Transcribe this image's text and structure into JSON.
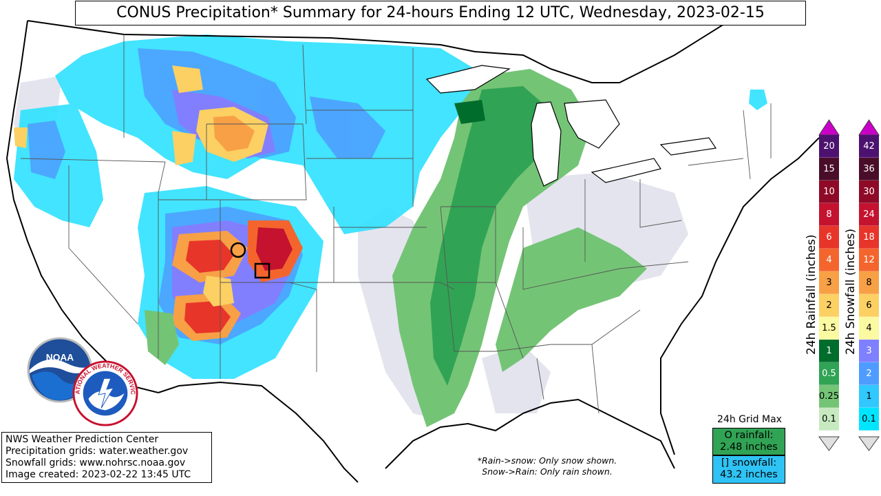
{
  "title": "CONUS Precipitation* Summary for 24-hours Ending 12 UTC, Wednesday, 2023-02-15",
  "info": [
    "NWS Weather Prediction Center",
    "Precipitation grids: water.weather.gov",
    "Snowfall grids: www.nohrsc.noaa.gov",
    "Image created: 2023-02-22 13:45 UTC"
  ],
  "note": [
    "*Rain->snow: Only snow shown.",
    "Snow->Rain: Only rain shown."
  ],
  "grid_max": {
    "label": "24h Grid Max",
    "rain_label": "O rainfall:",
    "rain_value": "2.48 inches",
    "snow_label": "[] snowfall:",
    "snow_value": "43.2 inches"
  },
  "rain_legend": {
    "title": "24h Rainfall (inches)",
    "levels": [
      "20",
      "15",
      "10",
      "8",
      "6",
      "4",
      "3",
      "2",
      "1.5",
      "1",
      "0.5",
      "0.25",
      "0.1"
    ],
    "colors": [
      "#4d1270",
      "#4a0d29",
      "#8f0a27",
      "#c4122f",
      "#e8352a",
      "#f4652d",
      "#f8a046",
      "#fcd063",
      "#fbf9a1",
      "#006d2c",
      "#31a354",
      "#74c476",
      "#c7e9c0"
    ]
  },
  "snow_legend": {
    "title": "24h Snowfall (inches)",
    "levels": [
      "42",
      "36",
      "30",
      "24",
      "18",
      "12",
      "8",
      "6",
      "4",
      "3",
      "2",
      "1",
      "0.1"
    ],
    "colors": [
      "#4d1270",
      "#4a0d29",
      "#8f0a27",
      "#c4122f",
      "#e8352a",
      "#f4652d",
      "#f8a046",
      "#fcd063",
      "#fbf9a1",
      "#7f80ff",
      "#4e9cff",
      "#30c8ff",
      "#00e5ff"
    ]
  },
  "logos": {
    "noaa_text": "NOAA",
    "nws_text": "NATIONAL WEATHER SERVICE"
  },
  "colors": {
    "snow_light": "#2fe6ff",
    "snow_mid": "#4e9cff",
    "snow_purple": "#8c78ff",
    "rain_green": "#31a354",
    "trace_gray": "#e6e6f0"
  }
}
